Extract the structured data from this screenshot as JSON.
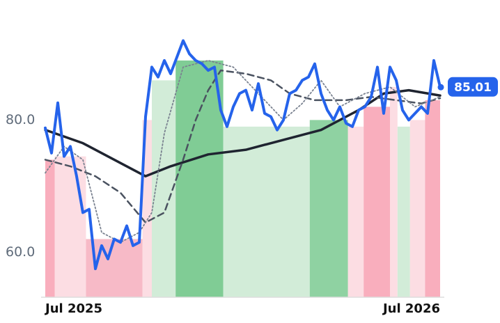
{
  "chart_data": {
    "type": "line",
    "ylim": [
      53.2,
      98
    ],
    "yticks": [
      {
        "value": 60,
        "label": "60.0"
      },
      {
        "value": 80,
        "label": "80.0"
      }
    ],
    "xlim": [
      0,
      63
    ],
    "xticks": [
      {
        "value": 0,
        "label": "Jul 2025"
      },
      {
        "value": 63,
        "label": "Jul 2026"
      }
    ],
    "grid": false,
    "bands": [
      {
        "x0": 0,
        "x1": 1.5,
        "top": 74,
        "color": "#f9aebd"
      },
      {
        "x0": 1.5,
        "x1": 6.5,
        "top": 74.5,
        "color": "#fcdde3"
      },
      {
        "x0": 6.5,
        "x1": 15.5,
        "top": 62,
        "color": "#f7bac7"
      },
      {
        "x0": 15.5,
        "x1": 17,
        "top": 80,
        "color": "#fcdde3"
      },
      {
        "x0": 17,
        "x1": 20.8,
        "top": 86,
        "color": "#d2ecd8"
      },
      {
        "x0": 20.8,
        "x1": 28.4,
        "top": 89,
        "color": "#80cc95"
      },
      {
        "x0": 28.4,
        "x1": 42.2,
        "top": 79,
        "color": "#d2ecd8"
      },
      {
        "x0": 42.2,
        "x1": 48.3,
        "top": 80,
        "color": "#8fd2a2"
      },
      {
        "x0": 48.3,
        "x1": 50.8,
        "top": 79,
        "color": "#fcdde3"
      },
      {
        "x0": 50.8,
        "x1": 55,
        "top": 82,
        "color": "#f9aebd"
      },
      {
        "x0": 55,
        "x1": 56.2,
        "top": 85,
        "color": "#fcdde3"
      },
      {
        "x0": 56.2,
        "x1": 58.2,
        "top": 79,
        "color": "#d2ecd8"
      },
      {
        "x0": 58.2,
        "x1": 60.6,
        "top": 80,
        "color": "#fcdde3"
      },
      {
        "x0": 60.6,
        "x1": 63,
        "top": 83,
        "color": "#f9aebd"
      }
    ],
    "series": [
      {
        "color": "#1f2430",
        "style": "solid",
        "width": 3.5,
        "x": [
          0,
          6,
          12,
          16,
          20,
          26,
          32,
          38,
          44,
          50,
          54,
          58,
          63
        ],
        "values": [
          78.5,
          76.5,
          73.5,
          71.5,
          73,
          74.8,
          75.5,
          77,
          78.5,
          81.5,
          84,
          84.5,
          83.7
        ]
      },
      {
        "color": "#4a5260",
        "style": "dashed",
        "width": 2.5,
        "x": [
          0,
          4,
          8,
          12,
          16,
          19,
          22,
          24,
          26,
          28,
          32,
          36,
          39,
          43,
          48,
          52,
          56,
          60,
          63
        ],
        "values": [
          74,
          73,
          71.5,
          69,
          64.5,
          66,
          74,
          80,
          84.5,
          87.5,
          87,
          86,
          84,
          83,
          83,
          83.5,
          83,
          82.5,
          83.3
        ]
      },
      {
        "color": "#7a8290",
        "style": "dotted",
        "width": 1.8,
        "x": [
          0,
          3,
          6,
          9,
          12,
          15,
          17,
          19,
          22,
          26,
          30,
          34,
          38,
          41,
          44,
          47,
          51,
          55,
          59,
          63
        ],
        "values": [
          72,
          76,
          74,
          63,
          61.5,
          63,
          66,
          78,
          88,
          89,
          88,
          84,
          80,
          82.5,
          86,
          82,
          84,
          85,
          82,
          83.5
        ]
      },
      {
        "color": "#2563eb",
        "style": "solid",
        "width": 4,
        "x": [
          0,
          1,
          2,
          3,
          4,
          5,
          6,
          7,
          8,
          9,
          10,
          11,
          12,
          13,
          14,
          15,
          16,
          17,
          18,
          19,
          20,
          21,
          22,
          23,
          24,
          25,
          26,
          27,
          28,
          29,
          30,
          31,
          32,
          33,
          34,
          35,
          36,
          37,
          38,
          39,
          40,
          41,
          42,
          43,
          44,
          45,
          46,
          47,
          48,
          49,
          50,
          51,
          52,
          53,
          54,
          55,
          56,
          57,
          58,
          59,
          60,
          61,
          62,
          63
        ],
        "values": [
          78.8,
          75,
          82.6,
          74.5,
          76,
          71.5,
          66,
          66.5,
          57.5,
          61,
          59,
          62,
          61.5,
          64,
          61,
          61.5,
          80.5,
          88,
          86.5,
          89,
          87,
          89.5,
          92,
          90,
          89,
          88.5,
          87.5,
          88,
          81.5,
          79,
          82,
          84,
          84.5,
          81.5,
          85.5,
          81,
          80.5,
          78.5,
          80,
          84,
          84.5,
          86,
          86.5,
          88.5,
          84,
          81.5,
          80,
          82,
          79.5,
          79,
          81.5,
          82,
          83.5,
          88,
          81,
          88,
          86,
          81.5,
          80,
          81,
          82,
          81,
          89,
          85.01
        ]
      }
    ]
  }
}
